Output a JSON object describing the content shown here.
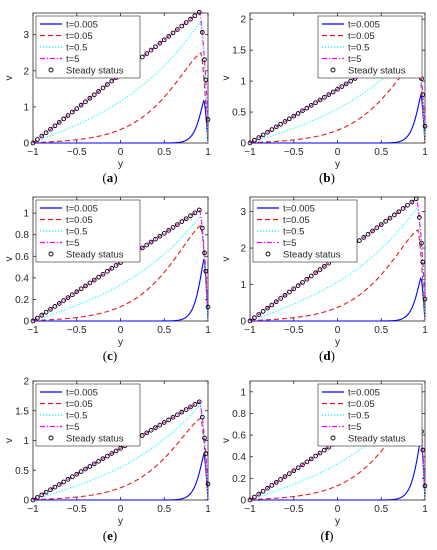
{
  "colors": {
    "t0005": "#0000ff",
    "t005": "#e41a1c",
    "t05": "#00ffff",
    "t5": "#ff00ff",
    "steady": "#000000",
    "axis": "#262626"
  },
  "chart_data": [
    {
      "panel": "(a)",
      "panel_letter": "a",
      "type": "line",
      "xlabel": "y",
      "ylabel": "v",
      "xlim": [
        -1,
        1
      ],
      "ylim": [
        0,
        3.6
      ],
      "xticks": [
        "-1",
        "-0.5",
        "0",
        "0.5",
        "1"
      ],
      "yticks": [
        "0",
        "1",
        "2",
        "3"
      ],
      "ytick_values": [
        0,
        1,
        2,
        3
      ],
      "legend": [
        "t=0.005",
        "t=0.05",
        "t=0.5",
        "t=5",
        "Steady status"
      ],
      "legend_position": "top-left",
      "series": [
        {
          "name": "t=0.005",
          "style": "solid",
          "y_peak": 1.2
        },
        {
          "name": "t=0.05",
          "style": "dashed",
          "y_peak": 2.45
        },
        {
          "name": "t=0.5",
          "style": "dotted",
          "y_peak": 3.35
        },
        {
          "name": "t=5",
          "style": "dashdot",
          "y_peak": 3.62
        },
        {
          "name": "Steady status",
          "style": "markers",
          "y_peak": 3.62,
          "y_end": 0.65
        }
      ]
    },
    {
      "panel": "(b)",
      "panel_letter": "b",
      "type": "line",
      "xlabel": "y",
      "ylabel": "v",
      "xlim": [
        -1,
        1
      ],
      "ylim": [
        0,
        2.1
      ],
      "xticks": [
        "-1",
        "-0.5",
        "0",
        "0.5",
        "1"
      ],
      "yticks": [
        "0",
        "0.5",
        "1",
        "1.5",
        "2"
      ],
      "ytick_values": [
        0,
        0.5,
        1,
        1.5,
        2
      ],
      "legend": [
        "t=0.005",
        "t=0.05",
        "t=0.5",
        "t=5",
        "Steady status"
      ],
      "legend_position": "top-right",
      "series": [
        {
          "name": "t=0.005",
          "style": "solid",
          "y_peak": 0.78
        },
        {
          "name": "t=0.05",
          "style": "dashed",
          "y_peak": 1.35
        },
        {
          "name": "t=0.5",
          "style": "dotted",
          "y_peak": 1.6
        },
        {
          "name": "t=5",
          "style": "dashdot",
          "y_peak": 1.65
        },
        {
          "name": "Steady status",
          "style": "markers",
          "y_peak": 1.65,
          "y_end": 0.27
        }
      ]
    },
    {
      "panel": "(c)",
      "panel_letter": "c",
      "type": "line",
      "xlabel": "y",
      "ylabel": "v",
      "xlim": [
        -1,
        1
      ],
      "ylim": [
        0,
        1.15
      ],
      "xticks": [
        "-1",
        "-0.5",
        "0",
        "0.5",
        "1"
      ],
      "yticks": [
        "0",
        "0.2",
        "0.4",
        "0.6",
        "0.8",
        "1"
      ],
      "ytick_values": [
        0,
        0.2,
        0.4,
        0.6,
        0.8,
        1
      ],
      "legend": [
        "t=0.005",
        "t=0.05",
        "t=0.5",
        "t=5",
        "Steady status"
      ],
      "legend_position": "top-left",
      "series": [
        {
          "name": "t=0.005",
          "style": "solid",
          "y_peak": 0.58
        },
        {
          "name": "t=0.05",
          "style": "dashed",
          "y_peak": 0.87
        },
        {
          "name": "t=0.5",
          "style": "dotted",
          "y_peak": 0.97
        },
        {
          "name": "t=5",
          "style": "dashdot",
          "y_peak": 1.03
        },
        {
          "name": "Steady status",
          "style": "markers",
          "y_peak": 1.03,
          "y_end": 0.13
        }
      ]
    },
    {
      "panel": "(d)",
      "panel_letter": "d",
      "type": "line",
      "xlabel": "y",
      "ylabel": "v",
      "xlim": [
        -1,
        1
      ],
      "ylim": [
        0,
        3.4
      ],
      "xticks": [
        "-1",
        "-0.5",
        "0",
        "0.5",
        "1"
      ],
      "yticks": [
        "0",
        "1",
        "2",
        "3"
      ],
      "ytick_values": [
        0,
        1,
        2,
        3
      ],
      "legend": [
        "t=0.005",
        "t=0.05",
        "t=0.5",
        "t=5",
        "Steady status"
      ],
      "legend_position": "top-left",
      "series": [
        {
          "name": "t=0.005",
          "style": "solid",
          "y_peak": 1.2
        },
        {
          "name": "t=0.05",
          "style": "dashed",
          "y_peak": 2.45
        },
        {
          "name": "t=0.5",
          "style": "dotted",
          "y_peak": 3.1
        },
        {
          "name": "t=5",
          "style": "dashdot",
          "y_peak": 3.35
        },
        {
          "name": "Steady status",
          "style": "markers",
          "y_peak": 3.35,
          "y_end": 0.6
        }
      ]
    },
    {
      "panel": "(e)",
      "panel_letter": "e",
      "type": "line",
      "xlabel": "y",
      "ylabel": "v",
      "xlim": [
        -1,
        1
      ],
      "ylim": [
        0,
        2.0
      ],
      "xticks": [
        "-1",
        "-0.5",
        "0",
        "0.5",
        "1"
      ],
      "yticks": [
        "0",
        "0.5",
        "1",
        "1.5",
        "2"
      ],
      "ytick_values": [
        0,
        0.5,
        1,
        1.5,
        2
      ],
      "legend": [
        "t=0.005",
        "t=0.05",
        "t=0.5",
        "t=5",
        "Steady status"
      ],
      "legend_position": "top-left",
      "series": [
        {
          "name": "t=0.005",
          "style": "solid",
          "y_peak": 0.78
        },
        {
          "name": "t=0.05",
          "style": "dashed",
          "y_peak": 1.35
        },
        {
          "name": "t=0.5",
          "style": "dotted",
          "y_peak": 1.6
        },
        {
          "name": "t=5",
          "style": "dashdot",
          "y_peak": 1.65
        },
        {
          "name": "Steady status",
          "style": "markers",
          "y_peak": 1.65,
          "y_end": 0.27
        }
      ]
    },
    {
      "panel": "(f)",
      "panel_letter": "f",
      "type": "line",
      "xlabel": "y",
      "ylabel": "v",
      "xlim": [
        -1,
        1
      ],
      "ylim": [
        0,
        1.1
      ],
      "xticks": [
        "-1",
        "-0.5",
        "0",
        "0.5",
        "1"
      ],
      "yticks": [
        "0",
        "0.2",
        "0.4",
        "0.6",
        "0.8",
        "1"
      ],
      "ytick_values": [
        0,
        0.2,
        0.4,
        0.6,
        0.8,
        1
      ],
      "legend": [
        "t=0.005",
        "t=0.05",
        "t=0.5",
        "t=5",
        "Steady status"
      ],
      "legend_position": "top-right",
      "series": [
        {
          "name": "t=0.005",
          "style": "solid",
          "y_peak": 0.58
        },
        {
          "name": "t=0.05",
          "style": "dashed",
          "y_peak": 0.87
        },
        {
          "name": "t=0.5",
          "style": "dotted",
          "y_peak": 0.97
        },
        {
          "name": "t=5",
          "style": "dashdot",
          "y_peak": 1.03
        },
        {
          "name": "Steady status",
          "style": "markers",
          "y_peak": 1.03,
          "y_end": 0.13
        }
      ]
    }
  ]
}
